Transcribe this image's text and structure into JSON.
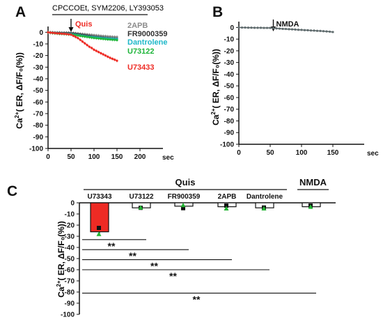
{
  "chart_data": [
    {
      "panel": "A",
      "type": "line",
      "x_unit": "sec",
      "ylabel_main": "Ca",
      "ylabel_sup": "2+",
      "ylabel_rest": "( ER, ΔF/F₀(%))",
      "xlim": [
        0,
        250
      ],
      "ylim": [
        -100,
        5
      ],
      "xticks": [
        0,
        50,
        100,
        150,
        200
      ],
      "yticks": [
        0,
        -10,
        -20,
        -30,
        -40,
        -50,
        -60,
        -70,
        -80,
        -90,
        -100
      ],
      "bracket_label": "CPCCOEt, SYM2206, LY393053",
      "stimulus": {
        "label": "Quis",
        "x": 50
      },
      "series": [
        {
          "name": "2APB",
          "color": "#8c8c8c",
          "x": [
            0,
            5,
            10,
            15,
            20,
            25,
            30,
            35,
            40,
            45,
            50,
            55,
            60,
            65,
            70,
            75,
            80,
            85,
            90,
            95,
            100,
            105,
            110,
            115,
            120,
            125,
            130,
            135,
            140,
            145,
            150
          ],
          "values": [
            0,
            -0.1,
            -0.1,
            -0.2,
            -0.2,
            -0.2,
            -0.3,
            -0.3,
            -0.3,
            -0.3,
            -0.4,
            -0.6,
            -0.8,
            -1.0,
            -1.2,
            -1.4,
            -1.6,
            -1.8,
            -2.0,
            -2.2,
            -2.4,
            -2.6,
            -2.8,
            -3.0,
            -3.2,
            -3.3,
            -3.5,
            -3.6,
            -3.8,
            -3.9,
            -4.0
          ]
        },
        {
          "name": "FR9000359",
          "color": "#333333",
          "x": [
            0,
            5,
            10,
            15,
            20,
            25,
            30,
            35,
            40,
            45,
            50,
            55,
            60,
            65,
            70,
            75,
            80,
            85,
            90,
            95,
            100,
            105,
            110,
            115,
            120,
            125,
            130,
            135,
            140,
            145,
            150
          ],
          "values": [
            0,
            -0.2,
            -0.3,
            -0.4,
            -0.5,
            -0.5,
            -0.6,
            -0.6,
            -0.7,
            -0.7,
            -0.8,
            -1.0,
            -1.3,
            -1.6,
            -1.9,
            -2.2,
            -2.5,
            -2.8,
            -3.1,
            -3.4,
            -3.7,
            -3.9,
            -4.1,
            -4.3,
            -4.5,
            -4.7,
            -4.9,
            -5.0,
            -5.2,
            -5.3,
            -5.5
          ]
        },
        {
          "name": "Dantrolene",
          "color": "#1fb8c9",
          "x": [
            0,
            5,
            10,
            15,
            20,
            25,
            30,
            35,
            40,
            45,
            50,
            55,
            60,
            65,
            70,
            75,
            80,
            85,
            90,
            95,
            100,
            105,
            110,
            115,
            120,
            125,
            130,
            135,
            140,
            145,
            150
          ],
          "values": [
            0,
            -0.3,
            -0.5,
            -0.6,
            -0.8,
            -0.9,
            -1.0,
            -1.1,
            -1.2,
            -1.3,
            -1.4,
            -1.7,
            -2.0,
            -2.3,
            -2.6,
            -2.9,
            -3.2,
            -3.5,
            -3.8,
            -4.0,
            -4.2,
            -4.4,
            -4.6,
            -4.8,
            -5.0,
            -5.1,
            -5.3,
            -5.4,
            -5.5,
            -5.7,
            -5.8
          ]
        },
        {
          "name": "U73122",
          "color": "#1eb53a",
          "x": [
            0,
            5,
            10,
            15,
            20,
            25,
            30,
            35,
            40,
            45,
            50,
            55,
            60,
            65,
            70,
            75,
            80,
            85,
            90,
            95,
            100,
            105,
            110,
            115,
            120,
            125,
            130,
            135,
            140,
            145,
            150
          ],
          "values": [
            0,
            -0.4,
            -0.7,
            -0.9,
            -1.1,
            -1.3,
            -1.4,
            -1.5,
            -1.6,
            -1.8,
            -1.9,
            -2.2,
            -2.5,
            -2.8,
            -3.1,
            -3.4,
            -3.7,
            -4.0,
            -4.3,
            -4.6,
            -4.9,
            -5.1,
            -5.3,
            -5.5,
            -5.7,
            -5.9,
            -6.1,
            -6.2,
            -6.4,
            -6.5,
            -6.7
          ]
        },
        {
          "name": "U73433",
          "color": "#ee2b24",
          "x": [
            0,
            5,
            10,
            15,
            20,
            25,
            30,
            35,
            40,
            45,
            50,
            55,
            60,
            65,
            70,
            75,
            80,
            85,
            90,
            95,
            100,
            105,
            110,
            115,
            120,
            125,
            130,
            135,
            140,
            145,
            150
          ],
          "values": [
            0,
            -0.3,
            -0.5,
            -0.7,
            -0.9,
            -1.0,
            -1.2,
            -1.3,
            -1.5,
            -1.7,
            -2.0,
            -3.0,
            -4.0,
            -5.0,
            -6.5,
            -8.0,
            -9.5,
            -11.0,
            -12.5,
            -13.5,
            -15.0,
            -16.0,
            -17.0,
            -18.0,
            -19.0,
            -20.0,
            -21.0,
            -22.0,
            -22.8,
            -23.6,
            -24.5
          ]
        }
      ]
    },
    {
      "panel": "B",
      "type": "line",
      "x_unit": "sec",
      "ylabel_main": "Ca",
      "ylabel_sup": "2+",
      "ylabel_rest": "( ER, ΔF/F₀(%))",
      "xlim": [
        0,
        200
      ],
      "ylim": [
        -100,
        5
      ],
      "xticks": [
        0,
        50,
        100,
        150
      ],
      "yticks": [
        0,
        -10,
        -20,
        -30,
        -40,
        -50,
        -60,
        -70,
        -80,
        -90,
        -100
      ],
      "stimulus": {
        "label": "NMDA",
        "x": 55
      },
      "series": [
        {
          "color": "#5f6b6d",
          "x": [
            0,
            5,
            10,
            15,
            20,
            25,
            30,
            35,
            40,
            45,
            50,
            55,
            60,
            65,
            70,
            75,
            80,
            85,
            90,
            95,
            100,
            105,
            110,
            115,
            120,
            125,
            130,
            135,
            140,
            145,
            150
          ],
          "values": [
            0,
            -0.1,
            -0.1,
            -0.2,
            -0.2,
            -0.3,
            -0.3,
            -0.3,
            -0.4,
            -0.4,
            -0.4,
            -0.6,
            -0.8,
            -1.0,
            -1.2,
            -1.3,
            -1.5,
            -1.6,
            -1.8,
            -2.0,
            -2.1,
            -2.3,
            -2.4,
            -2.6,
            -2.7,
            -2.9,
            -3.0,
            -3.2,
            -3.4,
            -3.6,
            -3.9
          ]
        }
      ]
    },
    {
      "panel": "C",
      "type": "bar",
      "ylabel_main": "Ca",
      "ylabel_sup": "2+",
      "ylabel_rest": "( ER, ΔF/F₀(%))",
      "ylim": [
        -100,
        0
      ],
      "yticks": [
        0,
        -10,
        -20,
        -30,
        -40,
        -50,
        -60,
        -70,
        -80,
        -90,
        -100
      ],
      "group_labels": [
        {
          "label": "Quis",
          "from": 0,
          "to": 4
        },
        {
          "label": "NMDA",
          "from": 5,
          "to": 5
        }
      ],
      "categories": [
        "U73343",
        "U73122",
        "FR900359",
        "2APB",
        "Dantrolene",
        ""
      ],
      "values": [
        -26,
        -4.5,
        -3,
        -3.5,
        -4.5,
        -3.5
      ],
      "bar_colors": [
        "#ee2b24",
        "#ffffff",
        "#ffffff",
        "#ffffff",
        "#ffffff",
        "#ffffff"
      ],
      "markers_square": [
        -22.5,
        -4.5,
        -4.8,
        -2.5,
        -4.2,
        -2.5
      ],
      "markers_triangle": [
        -28,
        -4.2,
        -2.0,
        -5.0,
        -5.0,
        -3.5
      ],
      "marker_square_color": "#111111",
      "marker_triangle_color": "#22b533",
      "significance": [
        {
          "label": "**",
          "from": 0,
          "to": 1,
          "y": -33
        },
        {
          "label": "**",
          "from": 0,
          "to": 2,
          "y": -42
        },
        {
          "label": "**",
          "from": 0,
          "to": 3,
          "y": -51
        },
        {
          "label": "**",
          "from": 0,
          "to": 4,
          "y": -60
        },
        {
          "label": "**",
          "from": 0,
          "to": 5,
          "y": -81
        }
      ]
    }
  ]
}
